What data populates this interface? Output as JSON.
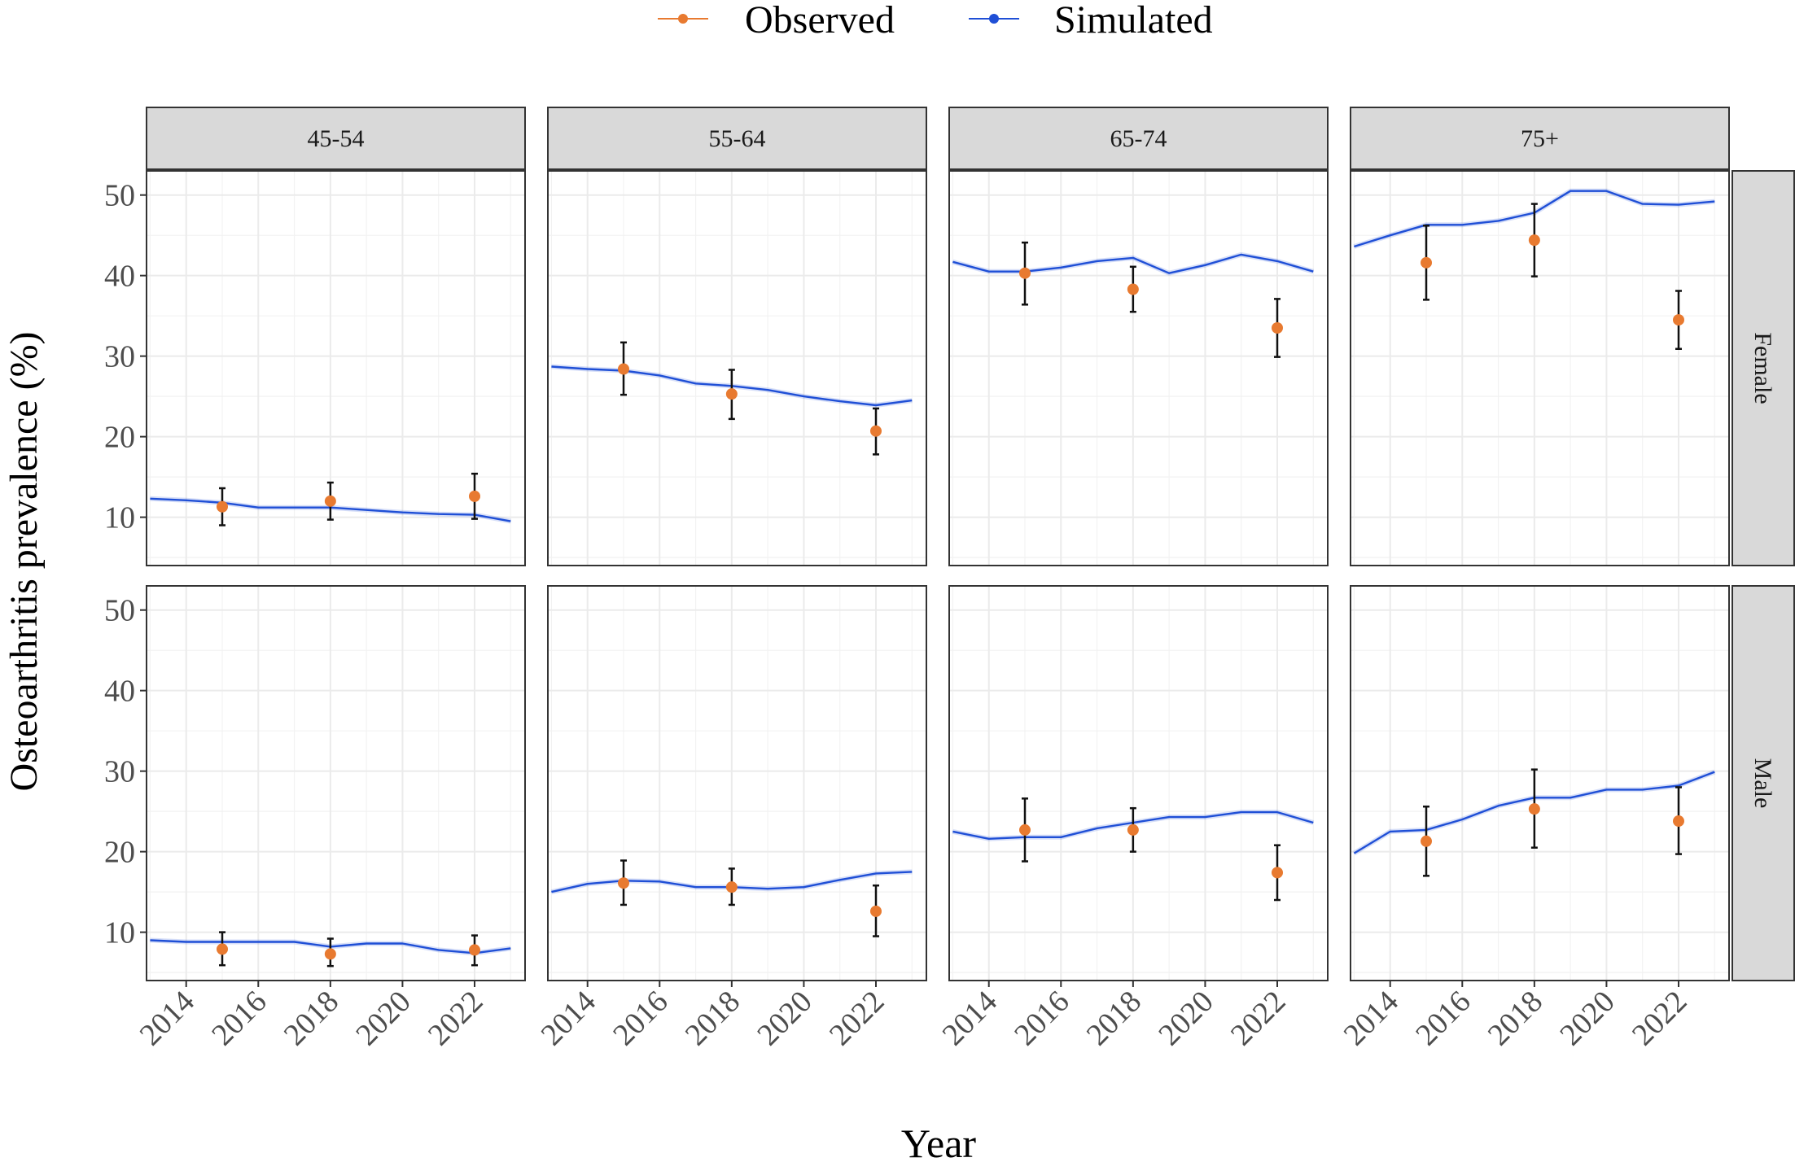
{
  "chart_data": {
    "type": "line",
    "ylabel": "Osteoarthritis prevalence (%)",
    "xlabel": "Year",
    "legend": {
      "position": "top",
      "entries": [
        {
          "name": "Observed",
          "color": "#E87A30",
          "marker": "point"
        },
        {
          "name": "Simulated",
          "color": "#1F4FD6",
          "marker": "line"
        }
      ]
    },
    "colors": {
      "observed": "#E87A30",
      "simulated": "#1F4FD6",
      "errorbar": "#111111",
      "strip": "#d9d9d9",
      "grid": "#ebebeb"
    },
    "xlim": [
      2012.9,
      2023.4
    ],
    "ylim": [
      4,
      53
    ],
    "x_ticks": [
      2014,
      2016,
      2018,
      2020,
      2022
    ],
    "x_tick_labels": [
      "2014",
      "2016",
      "2018",
      "2020",
      "2022"
    ],
    "y_ticks": [
      10,
      20,
      30,
      40,
      50
    ],
    "y_tick_labels": [
      "10",
      "20",
      "30",
      "40",
      "50"
    ],
    "age_groups": [
      "45-54",
      "55-64",
      "65-74",
      "75+"
    ],
    "sexes": [
      "Female",
      "Male"
    ],
    "panels": [
      {
        "sex": "Female",
        "age": "45-54",
        "simulated": {
          "x": [
            2013,
            2014,
            2015,
            2016,
            2017,
            2018,
            2019,
            2020,
            2021,
            2022,
            2023
          ],
          "y": [
            12.3,
            12.1,
            11.8,
            11.2,
            11.2,
            11.2,
            10.9,
            10.6,
            10.4,
            10.3,
            9.5
          ]
        },
        "observed": [
          {
            "x": 2015,
            "y": 11.3,
            "lo": 9.0,
            "hi": 13.6
          },
          {
            "x": 2018,
            "y": 12.0,
            "lo": 9.7,
            "hi": 14.3
          },
          {
            "x": 2022,
            "y": 12.6,
            "lo": 9.8,
            "hi": 15.4
          }
        ]
      },
      {
        "sex": "Female",
        "age": "55-64",
        "simulated": {
          "x": [
            2013,
            2014,
            2015,
            2016,
            2017,
            2018,
            2019,
            2020,
            2021,
            2022,
            2023
          ],
          "y": [
            28.7,
            28.4,
            28.2,
            27.6,
            26.6,
            26.3,
            25.8,
            25.0,
            24.4,
            23.9,
            24.5
          ]
        },
        "observed": [
          {
            "x": 2015,
            "y": 28.4,
            "lo": 25.2,
            "hi": 31.7
          },
          {
            "x": 2018,
            "y": 25.3,
            "lo": 22.2,
            "hi": 28.3
          },
          {
            "x": 2022,
            "y": 20.7,
            "lo": 17.8,
            "hi": 23.5
          }
        ]
      },
      {
        "sex": "Female",
        "age": "65-74",
        "simulated": {
          "x": [
            2013,
            2014,
            2015,
            2016,
            2017,
            2018,
            2019,
            2020,
            2021,
            2022,
            2023
          ],
          "y": [
            41.7,
            40.5,
            40.5,
            41.0,
            41.8,
            42.2,
            40.3,
            41.3,
            42.6,
            41.8,
            40.5
          ]
        },
        "observed": [
          {
            "x": 2015,
            "y": 40.3,
            "lo": 36.4,
            "hi": 44.1
          },
          {
            "x": 2018,
            "y": 38.3,
            "lo": 35.5,
            "hi": 41.1
          },
          {
            "x": 2022,
            "y": 33.5,
            "lo": 29.9,
            "hi": 37.1
          }
        ]
      },
      {
        "sex": "Female",
        "age": "75+",
        "simulated": {
          "x": [
            2013,
            2014,
            2015,
            2016,
            2017,
            2018,
            2019,
            2020,
            2021,
            2022,
            2023
          ],
          "y": [
            43.6,
            45.0,
            46.3,
            46.3,
            46.8,
            47.8,
            50.5,
            50.5,
            48.9,
            48.8,
            49.2
          ]
        },
        "observed": [
          {
            "x": 2015,
            "y": 41.6,
            "lo": 37.0,
            "hi": 46.2
          },
          {
            "x": 2018,
            "y": 44.4,
            "lo": 39.9,
            "hi": 48.9
          },
          {
            "x": 2022,
            "y": 34.5,
            "lo": 30.9,
            "hi": 38.1
          }
        ]
      },
      {
        "sex": "Male",
        "age": "45-54",
        "simulated": {
          "x": [
            2013,
            2014,
            2015,
            2016,
            2017,
            2018,
            2019,
            2020,
            2021,
            2022,
            2023
          ],
          "y": [
            9.0,
            8.8,
            8.8,
            8.8,
            8.8,
            8.2,
            8.6,
            8.6,
            7.8,
            7.4,
            8.0
          ]
        },
        "observed": [
          {
            "x": 2015,
            "y": 7.9,
            "lo": 5.9,
            "hi": 10.0
          },
          {
            "x": 2018,
            "y": 7.3,
            "lo": 5.8,
            "hi": 9.2
          },
          {
            "x": 2022,
            "y": 7.8,
            "lo": 5.9,
            "hi": 9.6
          }
        ]
      },
      {
        "sex": "Male",
        "age": "55-64",
        "simulated": {
          "x": [
            2013,
            2014,
            2015,
            2016,
            2017,
            2018,
            2019,
            2020,
            2021,
            2022,
            2023
          ],
          "y": [
            15.0,
            16.0,
            16.4,
            16.3,
            15.6,
            15.6,
            15.4,
            15.6,
            16.5,
            17.3,
            17.5
          ]
        },
        "observed": [
          {
            "x": 2015,
            "y": 16.1,
            "lo": 13.4,
            "hi": 18.9
          },
          {
            "x": 2018,
            "y": 15.6,
            "lo": 13.4,
            "hi": 17.9
          },
          {
            "x": 2022,
            "y": 12.6,
            "lo": 9.5,
            "hi": 15.8
          }
        ]
      },
      {
        "sex": "Male",
        "age": "65-74",
        "simulated": {
          "x": [
            2013,
            2014,
            2015,
            2016,
            2017,
            2018,
            2019,
            2020,
            2021,
            2022,
            2023
          ],
          "y": [
            22.5,
            21.6,
            21.8,
            21.8,
            22.9,
            23.6,
            24.3,
            24.3,
            24.9,
            24.9,
            23.6
          ]
        },
        "observed": [
          {
            "x": 2015,
            "y": 22.7,
            "lo": 18.8,
            "hi": 26.6
          },
          {
            "x": 2018,
            "y": 22.7,
            "lo": 20.0,
            "hi": 25.4
          },
          {
            "x": 2022,
            "y": 17.4,
            "lo": 14.0,
            "hi": 20.8
          }
        ]
      },
      {
        "sex": "Male",
        "age": "75+",
        "simulated": {
          "x": [
            2013,
            2014,
            2015,
            2016,
            2017,
            2018,
            2019,
            2020,
            2021,
            2022,
            2023
          ],
          "y": [
            19.8,
            22.5,
            22.7,
            24.0,
            25.7,
            26.7,
            26.7,
            27.7,
            27.7,
            28.2,
            29.9
          ]
        },
        "observed": [
          {
            "x": 2015,
            "y": 21.3,
            "lo": 17.0,
            "hi": 25.6
          },
          {
            "x": 2018,
            "y": 25.3,
            "lo": 20.5,
            "hi": 30.2
          },
          {
            "x": 2022,
            "y": 23.8,
            "lo": 19.7,
            "hi": 28.0
          }
        ]
      }
    ]
  }
}
